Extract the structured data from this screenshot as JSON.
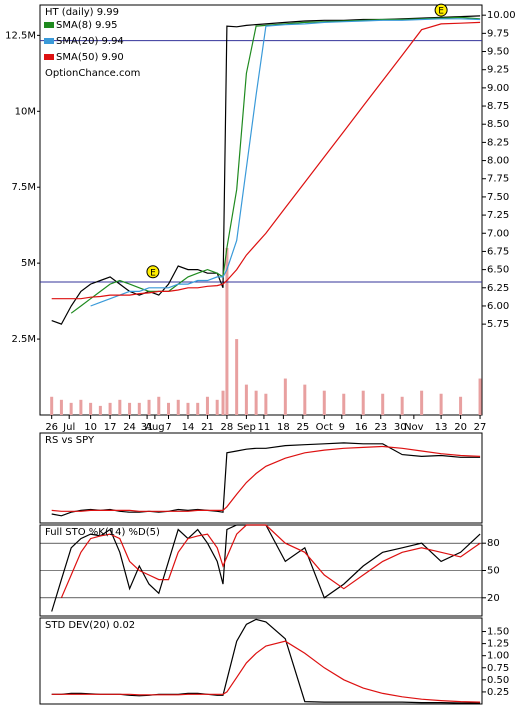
{
  "chart_data": [
    {
      "type": "line",
      "title": "HT (daily) 9.99",
      "subtitle": "OptionChance.com",
      "x": [
        0,
        0.5,
        1,
        1.5,
        2,
        2.5,
        3,
        3.5,
        4,
        4.5,
        5,
        5.5,
        6,
        6.5,
        7,
        7.5,
        8,
        8.5,
        8.8,
        9,
        9.5,
        10,
        10.5,
        11,
        12,
        13,
        14,
        15,
        16,
        17,
        18,
        19,
        20,
        21,
        22
      ],
      "xlim": [
        -0.6,
        22.1
      ],
      "xticks": [
        {
          "value": 0,
          "label": "26"
        },
        {
          "value": 0.9,
          "label": "Jul"
        },
        {
          "value": 2,
          "label": "10"
        },
        {
          "value": 3,
          "label": "17"
        },
        {
          "value": 4,
          "label": "24"
        },
        {
          "value": 4.9,
          "label": "31"
        },
        {
          "value": 5.3,
          "label": "Aug"
        },
        {
          "value": 6,
          "label": "7"
        },
        {
          "value": 7,
          "label": "14"
        },
        {
          "value": 8,
          "label": "21"
        },
        {
          "value": 9,
          "label": "28"
        },
        {
          "value": 10,
          "label": "Sep"
        },
        {
          "value": 10.9,
          "label": "11"
        },
        {
          "value": 11.9,
          "label": "18"
        },
        {
          "value": 12.9,
          "label": "25"
        },
        {
          "value": 14,
          "label": "Oct"
        },
        {
          "value": 14.9,
          "label": "9"
        },
        {
          "value": 15.9,
          "label": "16"
        },
        {
          "value": 16.9,
          "label": "23"
        },
        {
          "value": 17.9,
          "label": "30"
        },
        {
          "value": 18.6,
          "label": "Nov"
        },
        {
          "value": 20,
          "label": "13"
        },
        {
          "value": 21,
          "label": "20"
        },
        {
          "value": 22,
          "label": "27"
        }
      ],
      "ylim": [
        4.5,
        10.14
      ],
      "yticks": [
        {
          "value": 5.75,
          "label": "5.75"
        },
        {
          "value": 6,
          "label": "6.00"
        },
        {
          "value": 6.25,
          "label": "6.25"
        },
        {
          "value": 6.5,
          "label": "6.50"
        },
        {
          "value": 6.75,
          "label": "6.75"
        },
        {
          "value": 7,
          "label": "7.00"
        },
        {
          "value": 7.25,
          "label": "7.25"
        },
        {
          "value": 7.5,
          "label": "7.50"
        },
        {
          "value": 7.75,
          "label": "7.75"
        },
        {
          "value": 8,
          "label": "8.00"
        },
        {
          "value": 8.25,
          "label": "8.25"
        },
        {
          "value": 8.5,
          "label": "8.50"
        },
        {
          "value": 8.75,
          "label": "8.75"
        },
        {
          "value": 9,
          "label": "9.00"
        },
        {
          "value": 9.25,
          "label": "9.25"
        },
        {
          "value": 9.5,
          "label": "9.50"
        },
        {
          "value": 9.75,
          "label": "9.75"
        },
        {
          "value": 10,
          "label": "10.00"
        }
      ],
      "series": [
        {
          "color": "#000000",
          "values": [
            5.8,
            5.75,
            6.0,
            6.2,
            6.3,
            6.35,
            6.4,
            6.3,
            6.2,
            6.15,
            6.2,
            6.15,
            6.3,
            6.55,
            6.5,
            6.5,
            6.45,
            6.45,
            6.25,
            9.85,
            9.84,
            9.86,
            9.87,
            9.88,
            9.9,
            9.92,
            9.93,
            9.93,
            9.94,
            9.94,
            9.95,
            9.96,
            9.97,
            9.98,
            9.99
          ]
        },
        {
          "name": "SMA(8) 9.95",
          "color": "#1f8a1f",
          "values": [
            null,
            null,
            5.9,
            6.0,
            6.1,
            6.2,
            6.3,
            6.35,
            6.3,
            6.25,
            6.2,
            6.2,
            6.2,
            6.3,
            6.4,
            6.45,
            6.5,
            6.45,
            6.4,
            6.8,
            7.6,
            9.2,
            9.85,
            9.86,
            9.88,
            9.9,
            9.91,
            9.92,
            9.93,
            9.94,
            9.94,
            9.95,
            9.96,
            9.97,
            9.95
          ]
        },
        {
          "name": "SMA(20) 9.94",
          "color": "#3a9ad9",
          "values": [
            null,
            null,
            null,
            null,
            6.0,
            6.05,
            6.1,
            6.15,
            6.2,
            6.2,
            6.25,
            6.25,
            6.25,
            6.3,
            6.3,
            6.35,
            6.35,
            6.4,
            6.4,
            6.5,
            6.9,
            7.9,
            8.9,
            9.85,
            9.87,
            9.88,
            9.9,
            9.91,
            9.92,
            9.93,
            9.93,
            9.94,
            9.95,
            9.95,
            9.94
          ]
        },
        {
          "name": "SMA(50) 9.90",
          "color": "#dd1111",
          "values": [
            6.1,
            6.1,
            6.1,
            6.1,
            6.12,
            6.13,
            6.15,
            6.15,
            6.15,
            6.17,
            6.18,
            6.2,
            6.2,
            6.22,
            6.25,
            6.25,
            6.27,
            6.28,
            6.3,
            6.35,
            6.5,
            6.7,
            6.85,
            7.0,
            7.35,
            7.7,
            8.05,
            8.4,
            8.75,
            9.1,
            9.45,
            9.8,
            9.88,
            9.89,
            9.9
          ]
        }
      ],
      "hlines": [
        {
          "value": 9.65,
          "color": "#333399"
        },
        {
          "value": 6.33,
          "color": "#333399"
        }
      ],
      "events": [
        {
          "x": 5.2,
          "y": 6.47,
          "label": "E"
        },
        {
          "x": 20,
          "y": 10.07,
          "label": "E"
        }
      ],
      "volume": {
        "color": "#e8a0a0",
        "values": [
          600000,
          500000,
          400000,
          500000,
          400000,
          300000,
          400000,
          500000,
          400000,
          400000,
          500000,
          600000,
          400000,
          500000,
          400000,
          400000,
          600000,
          500000,
          800000,
          5500000,
          2500000,
          1000000,
          800000,
          700000,
          1200000,
          1000000,
          800000,
          700000,
          800000,
          700000,
          600000,
          800000,
          700000,
          600000,
          1200000
        ]
      },
      "y2lim": [
        0,
        13500000
      ],
      "y2ticks": [
        {
          "value": 2500000,
          "label": "2.5M"
        },
        {
          "value": 5000000,
          "label": "5M"
        },
        {
          "value": 7500000,
          "label": "7.5M"
        },
        {
          "value": 10000000,
          "label": "10M"
        },
        {
          "value": 12500000,
          "label": "12.5M"
        }
      ]
    },
    {
      "type": "line",
      "title": "RS vs SPY",
      "x": [
        0,
        0.5,
        1,
        1.5,
        2,
        2.5,
        3,
        3.5,
        4,
        4.5,
        5,
        5.5,
        6,
        6.5,
        7,
        7.5,
        8,
        8.5,
        8.8,
        9,
        9.5,
        10,
        10.5,
        11,
        12,
        13,
        14,
        15,
        16,
        17,
        18,
        19,
        20,
        21,
        22
      ],
      "xlim": [
        -0.6,
        22.1
      ],
      "ylim": [
        0,
        10
      ],
      "series": [
        {
          "color": "#000000",
          "values": [
            1.0,
            0.8,
            1.2,
            1.4,
            1.5,
            1.4,
            1.5,
            1.3,
            1.2,
            1.2,
            1.3,
            1.2,
            1.3,
            1.5,
            1.4,
            1.5,
            1.4,
            1.3,
            1.2,
            7.8,
            8.0,
            8.2,
            8.3,
            8.3,
            8.6,
            8.7,
            8.8,
            8.9,
            8.8,
            8.8,
            7.6,
            7.4,
            7.5,
            7.3,
            7.3
          ]
        },
        {
          "color": "#dd1111",
          "values": [
            1.4,
            1.3,
            1.3,
            1.3,
            1.4,
            1.4,
            1.4,
            1.4,
            1.4,
            1.3,
            1.3,
            1.3,
            1.3,
            1.3,
            1.3,
            1.4,
            1.4,
            1.4,
            1.4,
            1.8,
            3.2,
            4.5,
            5.5,
            6.3,
            7.2,
            7.8,
            8.1,
            8.3,
            8.4,
            8.5,
            8.3,
            8.0,
            7.7,
            7.5,
            7.4
          ]
        }
      ]
    },
    {
      "type": "line",
      "title": "Full STO %K(14) %D(5)",
      "x": [
        0,
        0.5,
        1,
        1.5,
        2,
        2.5,
        3,
        3.5,
        4,
        4.5,
        5,
        5.5,
        6,
        6.5,
        7,
        7.5,
        8,
        8.5,
        8.8,
        9,
        9.5,
        10,
        10.5,
        11,
        12,
        13,
        14,
        15,
        16,
        17,
        18,
        19,
        20,
        21,
        22
      ],
      "xlim": [
        -0.6,
        22.1
      ],
      "ylim": [
        0,
        100
      ],
      "yticks": [
        20,
        50,
        80
      ],
      "grid": true,
      "series": [
        {
          "color": "#000000",
          "values": [
            5,
            40,
            75,
            85,
            90,
            88,
            95,
            70,
            30,
            55,
            35,
            25,
            60,
            95,
            85,
            95,
            80,
            60,
            35,
            95,
            100,
            100,
            100,
            100,
            60,
            75,
            20,
            35,
            55,
            70,
            75,
            80,
            60,
            70,
            90
          ]
        },
        {
          "color": "#dd1111",
          "values": [
            null,
            20,
            45,
            70,
            85,
            88,
            90,
            85,
            60,
            50,
            45,
            40,
            40,
            70,
            85,
            88,
            90,
            75,
            55,
            65,
            90,
            100,
            100,
            100,
            80,
            70,
            45,
            30,
            45,
            60,
            70,
            75,
            70,
            65,
            80
          ]
        }
      ]
    },
    {
      "type": "line",
      "title": "STD DEV(20) 0.02",
      "x": [
        0,
        0.5,
        1,
        1.5,
        2,
        2.5,
        3,
        3.5,
        4,
        4.5,
        5,
        5.5,
        6,
        6.5,
        7,
        7.5,
        8,
        8.5,
        8.8,
        9,
        9.5,
        10,
        10.5,
        11,
        12,
        13,
        14,
        15,
        16,
        17,
        18,
        19,
        20,
        21,
        22
      ],
      "xlim": [
        -0.6,
        22.1
      ],
      "ylim": [
        0,
        1.78
      ],
      "yticks": [
        {
          "value": 0.25,
          "label": "0.25"
        },
        {
          "value": 0.5,
          "label": "0.50"
        },
        {
          "value": 0.75,
          "label": "0.75"
        },
        {
          "value": 1,
          "label": "1.00"
        },
        {
          "value": 1.25,
          "label": "1.25"
        },
        {
          "value": 1.5,
          "label": "1.50"
        }
      ],
      "series": [
        {
          "color": "#000000",
          "values": [
            0.2,
            0.2,
            0.22,
            0.22,
            0.21,
            0.2,
            0.2,
            0.2,
            0.18,
            0.17,
            0.18,
            0.2,
            0.2,
            0.2,
            0.22,
            0.22,
            0.2,
            0.18,
            0.18,
            0.5,
            1.3,
            1.65,
            1.75,
            1.7,
            1.35,
            0.05,
            0.04,
            0.04,
            0.04,
            0.04,
            0.04,
            0.03,
            0.03,
            0.02,
            0.02
          ]
        },
        {
          "color": "#dd1111",
          "values": [
            0.2,
            0.2,
            0.2,
            0.2,
            0.2,
            0.2,
            0.2,
            0.2,
            0.2,
            0.19,
            0.19,
            0.19,
            0.19,
            0.19,
            0.2,
            0.2,
            0.2,
            0.2,
            0.2,
            0.25,
            0.55,
            0.85,
            1.05,
            1.2,
            1.3,
            1.05,
            0.75,
            0.5,
            0.33,
            0.22,
            0.15,
            0.1,
            0.07,
            0.05,
            0.04
          ]
        }
      ]
    }
  ]
}
